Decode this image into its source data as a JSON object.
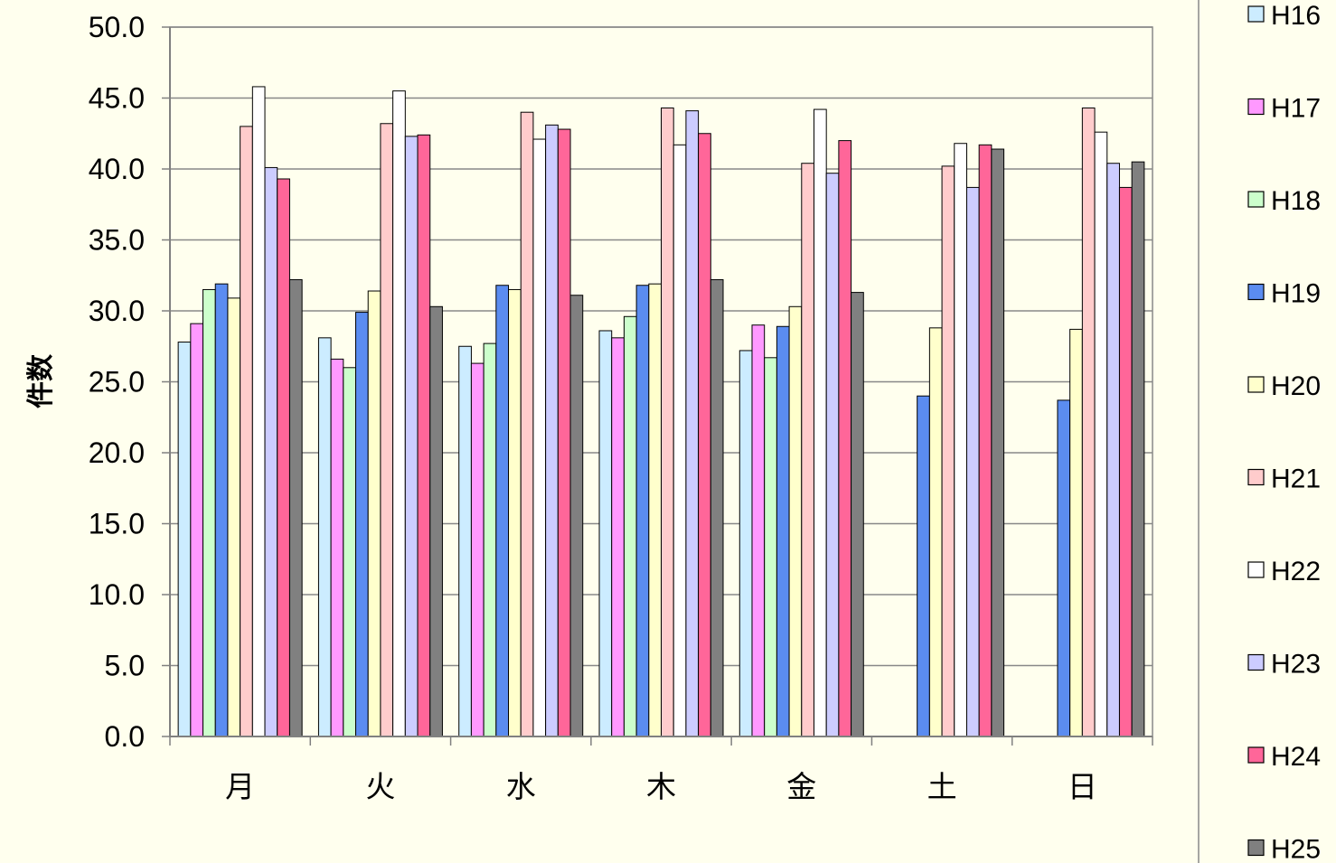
{
  "chart_data": {
    "type": "bar",
    "ylabel": "件数",
    "xlabel": "",
    "ylim": [
      0,
      50
    ],
    "ytick_step": 5,
    "ytick_labels": [
      "0.0",
      "5.0",
      "10.0",
      "15.0",
      "20.0",
      "25.0",
      "30.0",
      "35.0",
      "40.0",
      "45.0",
      "50.0"
    ],
    "grid": true,
    "legend_position": "right",
    "categories": [
      "月",
      "火",
      "水",
      "木",
      "金",
      "土",
      "日"
    ],
    "series": [
      {
        "name": "H16",
        "color": "#CCECFF",
        "values": [
          27.8,
          28.1,
          27.5,
          28.6,
          27.2,
          null,
          null
        ]
      },
      {
        "name": "H17",
        "color": "#FF99FF",
        "values": [
          29.1,
          26.6,
          26.3,
          28.1,
          29.0,
          null,
          null
        ]
      },
      {
        "name": "H18",
        "color": "#CCFFCC",
        "values": [
          31.5,
          26.0,
          27.7,
          29.6,
          26.7,
          null,
          null
        ]
      },
      {
        "name": "H19",
        "color": "#5B8CF0",
        "values": [
          31.9,
          29.9,
          31.8,
          31.8,
          28.9,
          24.0,
          23.7
        ]
      },
      {
        "name": "H20",
        "color": "#FFFFCC",
        "values": [
          30.9,
          31.4,
          31.5,
          31.9,
          30.3,
          28.8,
          28.7
        ]
      },
      {
        "name": "H21",
        "color": "#FFCCCC",
        "values": [
          43.0,
          43.2,
          44.0,
          44.3,
          40.4,
          40.2,
          44.3
        ]
      },
      {
        "name": "H22",
        "color": "#FFFFFF",
        "values": [
          45.8,
          45.5,
          42.1,
          41.7,
          44.2,
          41.8,
          42.6
        ]
      },
      {
        "name": "H23",
        "color": "#CCCCFF",
        "values": [
          40.1,
          42.3,
          43.1,
          44.1,
          39.7,
          38.7,
          40.4
        ]
      },
      {
        "name": "H24",
        "color": "#FF6699",
        "values": [
          39.3,
          42.4,
          42.8,
          42.5,
          42.0,
          41.7,
          38.7
        ]
      },
      {
        "name": "H25",
        "color": "#808080",
        "values": [
          32.2,
          30.3,
          31.1,
          32.2,
          31.3,
          41.4,
          40.5
        ]
      }
    ]
  }
}
